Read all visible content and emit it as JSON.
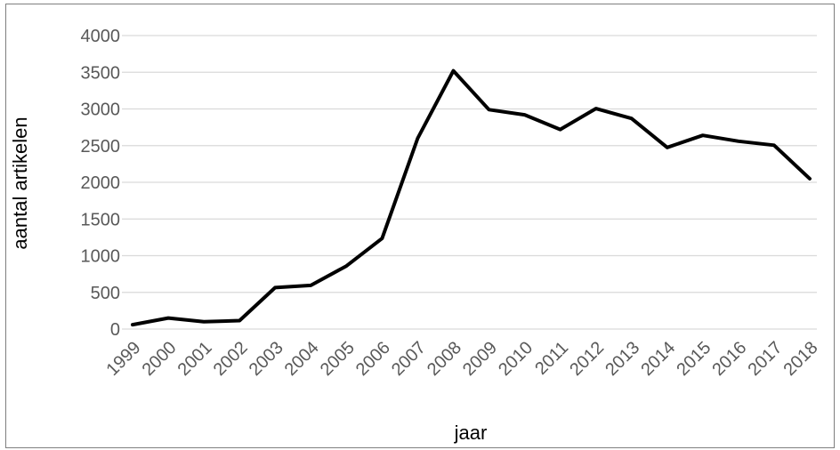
{
  "chart_data": {
    "type": "line",
    "xlabel": "jaar",
    "ylabel": "aantal artikelen",
    "ylim": [
      0,
      4000
    ],
    "yticks": [
      0,
      500,
      1000,
      1500,
      2000,
      2500,
      3000,
      3500,
      4000
    ],
    "grid": true,
    "legend": "none",
    "line_color": "#000000",
    "categories": [
      "1999",
      "2000",
      "2001",
      "2002",
      "2003",
      "2004",
      "2005",
      "2006",
      "2007",
      "2008",
      "2009",
      "2010",
      "2011",
      "2012",
      "2013",
      "2014",
      "2015",
      "2016",
      "2017",
      "2018"
    ],
    "series": [
      {
        "values": [
          60,
          150,
          100,
          115,
          565,
          595,
          860,
          1235,
          2600,
          3520,
          2990,
          2920,
          2720,
          3005,
          2870,
          2475,
          2640,
          2560,
          2505,
          2050
        ]
      }
    ]
  }
}
